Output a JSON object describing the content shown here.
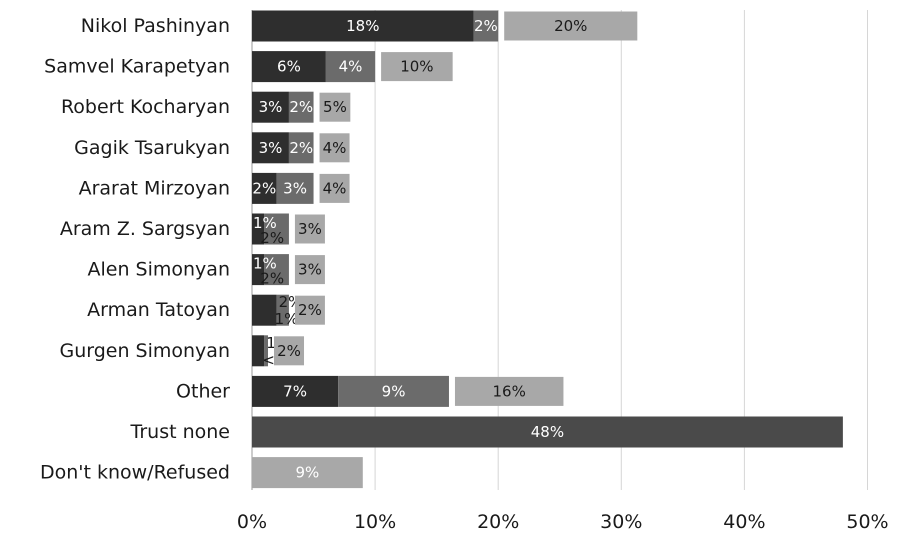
{
  "chart_data": {
    "type": "bar",
    "orientation": "horizontal",
    "stacked": true,
    "title": "",
    "xlabel": "",
    "ylabel": "",
    "xlim": [
      0,
      50
    ],
    "x_ticks": [
      "0%",
      "10%",
      "20%",
      "30%",
      "40%",
      "50%"
    ],
    "grid": true,
    "legend": "none",
    "colors": {
      "segment1": "#2e2e2e",
      "segment2": "#6b6b6b",
      "total": "#a8a8a8",
      "trust_none": "#4a4a4a",
      "dont_know": "#a8a8a8",
      "grid": "#d6d6d6"
    },
    "rows": [
      {
        "category": "Nikol Pashinyan",
        "segments": [
          {
            "value": 18,
            "label": "18%"
          },
          {
            "value": 2,
            "label": "2%"
          }
        ],
        "total": 20,
        "total_label": "20%"
      },
      {
        "category": "Samvel Karapetyan",
        "segments": [
          {
            "value": 6,
            "label": "6%"
          },
          {
            "value": 4,
            "label": "4%"
          }
        ],
        "total": 10,
        "total_label": "10%"
      },
      {
        "category": "Robert Kocharyan",
        "segments": [
          {
            "value": 3,
            "label": "3%"
          },
          {
            "value": 2,
            "label": "2%"
          }
        ],
        "total": 5,
        "total_label": "5%"
      },
      {
        "category": "Gagik Tsarukyan",
        "segments": [
          {
            "value": 3,
            "label": "3%"
          },
          {
            "value": 2,
            "label": "2%"
          }
        ],
        "total": 4,
        "total_label": "4%"
      },
      {
        "category": "Ararat Mirzoyan",
        "segments": [
          {
            "value": 2,
            "label": "2%"
          },
          {
            "value": 3,
            "label": "3%"
          }
        ],
        "total": 4,
        "total_label": "4%"
      },
      {
        "category": "Aram Z. Sargsyan",
        "segments": [
          {
            "value": 1,
            "label": "1%"
          },
          {
            "value": 2,
            "label": "2%"
          }
        ],
        "total": 3,
        "total_label": "3%"
      },
      {
        "category": "Alen Simonyan",
        "segments": [
          {
            "value": 1,
            "label": "1%"
          },
          {
            "value": 2,
            "label": "2%"
          }
        ],
        "total": 3,
        "total_label": "3%"
      },
      {
        "category": "Arman Tatoyan",
        "segments": [
          {
            "value": 2,
            "label": "2%"
          },
          {
            "value": 1,
            "label": "1%"
          }
        ],
        "total": 2,
        "total_label": "2%"
      },
      {
        "category": "Gurgen Simonyan",
        "segments": [
          {
            "value": 1,
            "label": "1%"
          },
          {
            "value": 0.3,
            "label": "<1%"
          }
        ],
        "total": 2,
        "total_label": "2%"
      },
      {
        "category": "Other",
        "segments": [
          {
            "value": 7,
            "label": "7%"
          },
          {
            "value": 9,
            "label": "9%"
          }
        ],
        "total": 16,
        "total_label": "16%"
      },
      {
        "category": "Trust none",
        "single": {
          "value": 48,
          "label": "48%",
          "color": "trust_none"
        }
      },
      {
        "category": "Don't know/Refused",
        "single": {
          "value": 9,
          "label": "9%",
          "color": "dont_know"
        }
      }
    ]
  }
}
